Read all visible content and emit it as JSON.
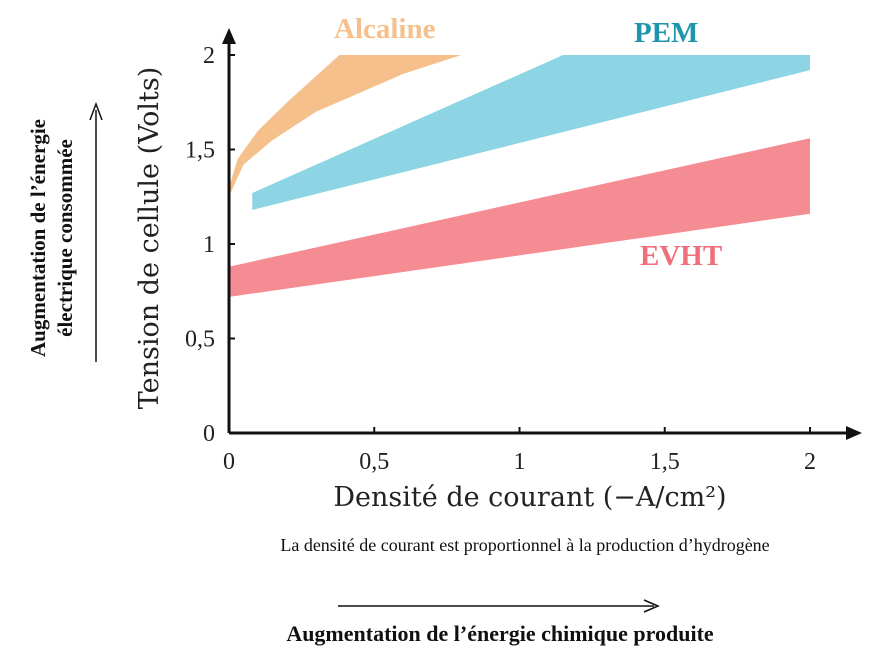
{
  "chart_data": {
    "type": "area",
    "xlabel": "Densité de courant (−A/cm²)",
    "ylabel": "Tension de cellule (Volts)",
    "xlim": [
      0,
      2
    ],
    "ylim": [
      0,
      2
    ],
    "x_ticks": [
      "0",
      "0,5",
      "1",
      "1,5",
      "2"
    ],
    "y_ticks": [
      "0",
      "0,5",
      "1",
      "1,5",
      "2"
    ],
    "grid": false,
    "series": [
      {
        "name": "Alcaline",
        "color": "#f6c08c",
        "upper": [
          [
            0,
            1.3
          ],
          [
            0.03,
            1.45
          ],
          [
            0.1,
            1.6
          ],
          [
            0.2,
            1.75
          ],
          [
            0.38,
            2.0
          ],
          [
            0.8,
            2.0
          ]
        ],
        "lower": [
          [
            0,
            1.25
          ],
          [
            0.05,
            1.42
          ],
          [
            0.15,
            1.55
          ],
          [
            0.3,
            1.7
          ],
          [
            0.6,
            1.9
          ],
          [
            0.8,
            2.0
          ]
        ]
      },
      {
        "name": "PEM",
        "color": "#8dd5e4",
        "upper": [
          [
            0.08,
            1.27
          ],
          [
            1.15,
            2.0
          ],
          [
            2.0,
            2.0
          ]
        ],
        "lower": [
          [
            0.08,
            1.18
          ],
          [
            2.0,
            1.92
          ]
        ]
      },
      {
        "name": "EVHT",
        "color": "#f58b93",
        "upper": [
          [
            0,
            0.88
          ],
          [
            2.0,
            1.56
          ]
        ],
        "lower": [
          [
            0,
            0.72
          ],
          [
            2.0,
            1.16
          ]
        ]
      }
    ]
  },
  "side_label": {
    "line1": "Augmentation de l’énergie",
    "line2": "électrique consommée"
  },
  "note": "La densité de courant est proportionnel à la production d’hydrogène",
  "bottom_label": "Augmentation de l’énergie chimique produite"
}
